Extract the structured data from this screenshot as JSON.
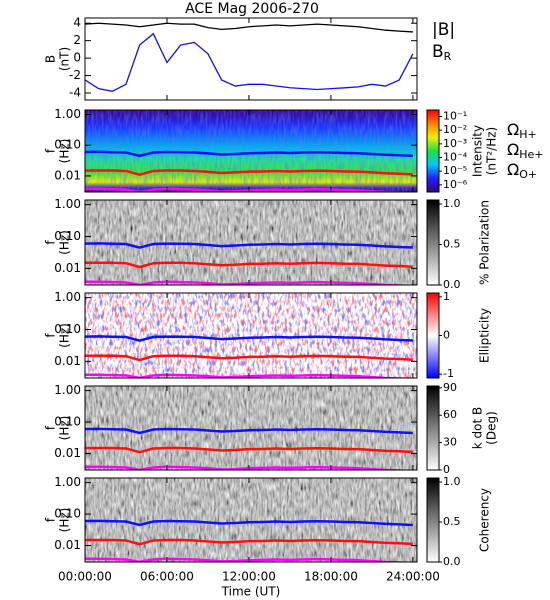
{
  "title": "ACE Mag 2006-270",
  "x_label": "Time (UT)",
  "x": [
    0,
    1,
    2,
    3,
    4,
    5,
    6,
    7,
    8,
    9,
    10,
    11,
    12,
    13,
    14,
    15,
    16,
    17,
    18,
    19,
    20,
    21,
    22,
    23,
    24
  ],
  "xlim": [
    0,
    24.3
  ],
  "xticks": [
    {
      "value": 0,
      "label": "00:00:00"
    },
    {
      "value": 6,
      "label": "06:00:00"
    },
    {
      "value": 12,
      "label": "12:00:00"
    },
    {
      "value": 18,
      "label": "18:00:00"
    },
    {
      "value": 24,
      "label": "24:00:00"
    }
  ],
  "gyrofrequencies": [
    {
      "name": "ΩH+",
      "color": "#1010ff",
      "values": [
        0.06,
        0.061,
        0.059,
        0.058,
        0.045,
        0.058,
        0.06,
        0.059,
        0.058,
        0.054,
        0.05,
        0.052,
        0.055,
        0.056,
        0.058,
        0.056,
        0.058,
        0.059,
        0.058,
        0.056,
        0.055,
        0.052,
        0.049,
        0.047,
        0.045
      ]
    },
    {
      "name": "ΩHe+",
      "color": "#ff1010",
      "values": [
        0.015,
        0.015,
        0.015,
        0.0145,
        0.011,
        0.0145,
        0.015,
        0.015,
        0.0145,
        0.0135,
        0.0125,
        0.013,
        0.0138,
        0.014,
        0.0145,
        0.014,
        0.0145,
        0.0148,
        0.0145,
        0.014,
        0.0138,
        0.013,
        0.0122,
        0.0118,
        0.0112
      ]
    },
    {
      "name": "ΩO+",
      "color": "#ff00ff",
      "values": [
        0.0038,
        0.0038,
        0.0037,
        0.0036,
        0.003,
        0.0036,
        0.0038,
        0.0037,
        0.0036,
        0.0034,
        0.0031,
        0.0032,
        0.0034,
        0.0035,
        0.0036,
        0.0035,
        0.0036,
        0.0037,
        0.0036,
        0.0035,
        0.0034,
        0.0032,
        0.003,
        0.0029,
        0.0028
      ]
    }
  ],
  "chart_data": [
    {
      "type": "line",
      "ylabel": [
        "B",
        "(nT)"
      ],
      "ylim": [
        -4.8,
        4.6
      ],
      "yticks": [
        -4,
        -2,
        0,
        2,
        4
      ],
      "series": [
        {
          "name": "|B|",
          "color": "#000000",
          "values": [
            3.9,
            4.0,
            3.9,
            3.8,
            3.6,
            3.8,
            4.0,
            3.9,
            3.9,
            3.5,
            3.3,
            3.4,
            3.6,
            3.7,
            3.8,
            3.7,
            3.8,
            3.9,
            3.8,
            3.7,
            3.6,
            3.4,
            3.2,
            3.1,
            3.0
          ]
        },
        {
          "name": "BR",
          "color": "#1010ff",
          "values": [
            -2.5,
            -3.5,
            -3.8,
            -3.0,
            1.5,
            2.8,
            -0.5,
            1.5,
            1.8,
            0.5,
            -2.5,
            -3.2,
            -3.0,
            -3.0,
            -3.2,
            -3.4,
            -3.5,
            -3.6,
            -3.5,
            -3.4,
            -3.3,
            -3.0,
            -3.2,
            -2.5,
            0.5
          ]
        }
      ]
    },
    {
      "type": "spectrogram",
      "style": "intensity",
      "legend": true,
      "ylabel": [
        "f",
        "(Hz)"
      ],
      "ylim": [
        0.003,
        1.4
      ],
      "log_y": true,
      "yticks": [
        {
          "value": 1,
          "label": "1.00"
        },
        {
          "value": 0.1,
          "label": "0.10"
        },
        0.01
      ],
      "colorbar": {
        "label": [
          "Intensity",
          "(nT²/Hz)"
        ],
        "lim": [
          3e-07,
          0.3
        ],
        "log": true,
        "ticks": [
          {
            "value": 0.1,
            "label": "10⁻¹"
          },
          {
            "value": 0.01,
            "label": "10⁻²"
          },
          {
            "value": 0.001,
            "label": "10⁻³"
          },
          {
            "value": 0.0001,
            "label": "10⁻⁴"
          },
          {
            "value": 1e-05,
            "label": "10⁻⁵"
          },
          {
            "value": 1e-06,
            "label": "10⁻⁶"
          }
        ],
        "colors": [
          "#3a0080",
          "#2020ff",
          "#00c8ff",
          "#20e040",
          "#f0f000",
          "#ff8000",
          "#ff0000"
        ]
      }
    },
    {
      "type": "spectrogram",
      "style": "gray",
      "ylabel": [
        "f",
        "(Hz)"
      ],
      "ylim": [
        0.003,
        1.4
      ],
      "log_y": true,
      "yticks": [
        {
          "value": 1,
          "label": "1.00"
        },
        {
          "value": 0.1,
          "label": "0.10"
        },
        0.01
      ],
      "colorbar": {
        "label": [
          "% Polarization"
        ],
        "lim": [
          0,
          1.05
        ],
        "ticks": [
          {
            "value": 0,
            "label": "0.0"
          },
          {
            "value": 0.5,
            "label": "0.5"
          },
          {
            "value": 1,
            "label": "1.0"
          }
        ],
        "colors": [
          "#ffffff",
          "#000000"
        ]
      }
    },
    {
      "type": "spectrogram",
      "style": "ellipticity",
      "ylabel": [
        "f",
        "(Hz)"
      ],
      "ylim": [
        0.003,
        1.4
      ],
      "log_y": true,
      "yticks": [
        {
          "value": 1,
          "label": "1.00"
        },
        {
          "value": 0.1,
          "label": "0.10"
        },
        0.01
      ],
      "colorbar": {
        "label": [
          "Ellipticity"
        ],
        "lim": [
          -1.1,
          1.1
        ],
        "ticks": [
          -1,
          0,
          1
        ],
        "colors": [
          "#0000ff",
          "#ffffff",
          "#ff0000"
        ]
      }
    },
    {
      "type": "spectrogram",
      "style": "gray",
      "ylabel": [
        "f",
        "(Hz)"
      ],
      "ylim": [
        0.003,
        1.4
      ],
      "log_y": true,
      "yticks": [
        {
          "value": 1,
          "label": "1.00"
        },
        {
          "value": 0.1,
          "label": "0.10"
        },
        0.01
      ],
      "colorbar": {
        "label": [
          "k dot B",
          "(Deg)"
        ],
        "lim": [
          0,
          92
        ],
        "ticks": [
          0,
          30,
          60,
          90
        ],
        "colors": [
          "#ffffff",
          "#000000"
        ]
      }
    },
    {
      "type": "spectrogram",
      "style": "gray",
      "ylabel": [
        "f",
        "(Hz)"
      ],
      "ylim": [
        0.003,
        1.4
      ],
      "log_y": true,
      "yticks": [
        {
          "value": 1,
          "label": "1.00"
        },
        {
          "value": 0.1,
          "label": "0.10"
        },
        0.01
      ],
      "colorbar": {
        "label": [
          "Coherency"
        ],
        "lim": [
          0,
          1.05
        ],
        "ticks": [
          {
            "value": 0,
            "label": "0.0"
          },
          {
            "value": 0.5,
            "label": "0.5"
          },
          {
            "value": 1,
            "label": "1.0"
          }
        ],
        "colors": [
          "#ffffff",
          "#000000"
        ]
      }
    }
  ]
}
